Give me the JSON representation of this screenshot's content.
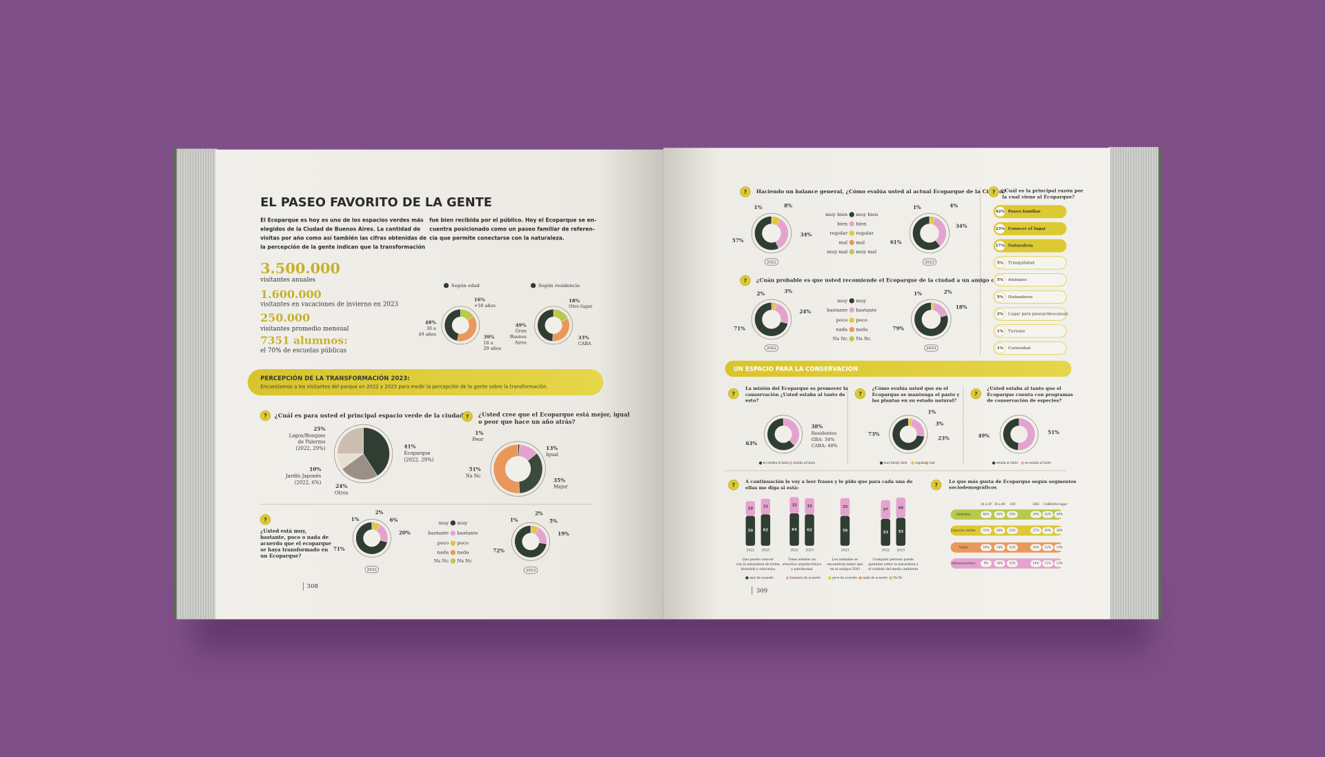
{
  "question_mark": "?",
  "left_page": {
    "title": "EL PASEO FAVORITO DE LA GENTE",
    "intro": [
      "El Ecoparque es hoy es uno de los espacios verdes más",
      "elegidos de la Ciudad de Buenos Aires. La cantidad de",
      "visitas por año como así también las cifras obtenidas de",
      "la percepción de la gente indican que la transformación"
    ],
    "intro_continued": [
      "fue bien recibida por el público. Hoy el Ecoparque se en-",
      "cuentra posicionado como un paseo familiar de referen-",
      "cia que permite conectarse con la naturaleza."
    ],
    "stats": [
      {
        "figure": "3.500.000",
        "caption": "visitantes anuales"
      },
      {
        "figure": "1.600.000",
        "caption": "visitantes en vacaciones de invierno en 2023"
      },
      {
        "figure": "250.000",
        "caption": "visitantes promedio mensual"
      },
      {
        "figure": "7351 alumnos:",
        "caption": "el 70% de escuelas públicas"
      }
    ],
    "age_donut": {
      "legend": "Según edad",
      "values": [
        16,
        39,
        48
      ],
      "value_labels": [
        "16%",
        "39%",
        "48%"
      ],
      "labels": [
        [
          "+50 años"
        ],
        [
          "18 a",
          "29 años"
        ],
        [
          "30 a",
          "49 años"
        ]
      ]
    },
    "residence_donut": {
      "legend": "Según residencia",
      "values": [
        18,
        33,
        49
      ],
      "value_labels": [
        "18%",
        "33%",
        "49%"
      ],
      "labels": [
        [
          "Otro lugar"
        ],
        [
          "CABA"
        ],
        [
          "Gran",
          "Buenos",
          "Aires"
        ]
      ]
    },
    "banner": {
      "title": "PERCEPCIÓN DE LA TRANSFORMACIÓN 2023:",
      "text": "Encuestamos a los visitantes del parque en 2022 y 2023 para medir la percepción de la gente sobre la transformación."
    },
    "green_space": {
      "question": "¿Cuál es para usted el principal espacio verde de la ciudad?",
      "values": [
        41,
        24,
        10,
        25
      ],
      "value_labels": [
        "41%",
        "24%",
        "10%",
        "25%"
      ],
      "labels": [
        [
          "Ecoparque",
          "(2022, 29%)"
        ],
        [
          "Otros"
        ],
        [
          "Jardín Japonés",
          "(2022, 6%)"
        ],
        [
          "Lagos/Bosques",
          "de Palermo",
          "(2022, 29%)"
        ]
      ]
    },
    "better_worse": {
      "question": [
        "¿Usted cree que el Ecoparque está mejor, igual",
        "o peor que hace un año atrás?"
      ],
      "values": [
        1,
        13,
        35,
        51
      ],
      "value_labels": [
        "1%",
        "13%",
        "35%",
        "51%"
      ],
      "labels": [
        [
          "Peor"
        ],
        [
          "Igual"
        ],
        [
          "Mejor"
        ],
        [
          "Ns Nc"
        ]
      ]
    },
    "transformed": {
      "question": [
        "¿Usted está muy,",
        "bastante, poco o nada de",
        "acuerdo que el ecoparque",
        "se haya transformado en",
        "un Ecoparque?"
      ],
      "legend": [
        "muy",
        "bastante",
        "poco",
        "nada",
        "Ns Nc"
      ],
      "charts": [
        {
          "year": "2022",
          "values": [
            71,
            20,
            6,
            2,
            1
          ],
          "value_labels": [
            "71%",
            "20%",
            "6%",
            "2%",
            "1%"
          ]
        },
        {
          "year": "2023",
          "values": [
            72,
            19,
            5,
            2,
            1
          ],
          "value_labels": [
            "72%",
            "19%",
            "5%",
            "2%",
            "1%"
          ]
        }
      ]
    },
    "page_number": "308"
  },
  "right_page": {
    "overall": {
      "question": "Haciendo un balance general, ¿Cómo evalúa usted al actual Ecoparque de la Ciudad?",
      "legend": [
        "muy bien",
        "bien",
        "regular",
        "mal",
        "muy mal"
      ],
      "charts": [
        {
          "year": "2022",
          "values": [
            57,
            34,
            8,
            1
          ],
          "value_labels": [
            "57%",
            "34%",
            "8%",
            "1%"
          ]
        },
        {
          "year": "2023",
          "values": [
            61,
            34,
            4,
            1
          ],
          "value_labels": [
            "61%",
            "34%",
            "4%",
            "1%"
          ]
        }
      ]
    },
    "recommend": {
      "question": "¿Cuán probable es que usted recomiende el Ecoparque de la ciudad a un amigo o familiar?",
      "legend": [
        "muy",
        "bastante",
        "poco",
        "nada",
        "Ns Nc"
      ],
      "charts": [
        {
          "year": "2022",
          "values": [
            71,
            24,
            3,
            2
          ],
          "value_labels": [
            "71%",
            "24%",
            "3%",
            "2%"
          ]
        },
        {
          "year": "2023",
          "values": [
            79,
            18,
            2,
            1
          ],
          "value_labels": [
            "79%",
            "18%",
            "2%",
            "1%"
          ]
        }
      ]
    },
    "reasons": {
      "question": [
        "¿Cuál es la principal razón por",
        "la cual viene al Ecoparque?"
      ],
      "items": [
        {
          "share": "42%",
          "reason": "Paseo familiar"
        },
        {
          "share": "23%",
          "reason": "Conocer el lugar"
        },
        {
          "share": "17%",
          "reason": "Naturaleza"
        },
        {
          "share": "5%",
          "reason": "Tranquilidad"
        },
        {
          "share": "5%",
          "reason": "Animales"
        },
        {
          "share": "5%",
          "reason": "Distenderse"
        },
        {
          "share": "2%",
          "reason": "Lugar para pasear/descansar"
        },
        {
          "share": "1%",
          "reason": "Turismo"
        },
        {
          "share": "1%",
          "reason": "Curiosidad"
        }
      ]
    },
    "conservation": {
      "title": "UN ESPACIO PARA LA CONSERVACIÓN",
      "charts": [
        {
          "question": [
            "La misión del Ecoparque es promover la",
            "conservación ¿Usted estaba al tanto de",
            "esto?"
          ],
          "values": [
            63,
            38
          ],
          "value_labels": [
            "63%",
            "38%"
          ],
          "notes": [
            "Residentes",
            "GBA: 34%",
            "CABA: 48%"
          ],
          "legend": [
            "no estaba al tanto",
            "estaba al tanto"
          ]
        },
        {
          "question": [
            "¿Cómo evalúa usted que en el",
            "Ecoparque se mantenga el pasto y",
            "las plantas en su estado natural?"
          ],
          "values": [
            73,
            23,
            3,
            1
          ],
          "value_labels": [
            "73%",
            "23%",
            "3%",
            "1%"
          ],
          "legend": [
            "muy bien",
            "bien",
            "regular",
            "mal"
          ]
        },
        {
          "question": [
            "¿Usted estaba al tanto que el",
            "Ecoparque cuenta con programas",
            "de conservación de especies?"
          ],
          "values": [
            49,
            51
          ],
          "value_labels": [
            "49%",
            "51%"
          ],
          "legend": [
            "estaba al tanto",
            "no estaba al tanto"
          ]
        }
      ]
    },
    "agreement": {
      "question": [
        "A continuación le voy a leer frases y le pido que para cada una de",
        "ellas me diga si está:"
      ],
      "groups": [
        {
          "caption": [
            "Que puede conocer",
            "con la naturaleza de forma",
            "divertida y educativa"
          ],
          "bars": [
            {
              "year": "2022",
              "values": [
                59,
                29
              ]
            },
            {
              "year": "2023",
              "values": [
                62,
                31
              ]
            }
          ]
        },
        {
          "caption": [
            "Tiene además un",
            "atractivo arquitectónico",
            "y patrimonial"
          ],
          "bars": [
            {
              "year": "2022",
              "values": [
                64,
                32
              ]
            },
            {
              "year": "2023",
              "values": [
                62,
                32
              ]
            }
          ]
        },
        {
          "caption": [
            "Los animales se",
            "encuentran mejor que",
            "en el antiguo ZOO"
          ],
          "bars": [
            {
              "year": "2023",
              "values": [
                59,
                35
              ]
            }
          ]
        },
        {
          "caption": [
            "Cualquier persona puede",
            "aprender sobre la naturaleza y",
            "el cuidado del medio ambiente"
          ],
          "bars": [
            {
              "year": "2022",
              "values": [
                53,
                37
              ]
            },
            {
              "year": "2023",
              "values": [
                55,
                40
              ]
            }
          ]
        }
      ],
      "legend": [
        "muy de acuerdo",
        "bastante de acuerdo",
        "poco de acuerdo",
        "nada de acuerdo",
        "Ns Nc"
      ]
    },
    "segments": {
      "question": [
        "Lo que más gusta de Ecoparque según segmentos",
        "sociodemográficos"
      ],
      "columns": [
        "18 a 29",
        "30 a 49",
        "+50",
        "GBA",
        "CABA",
        "Otro lugar"
      ],
      "rows": [
        {
          "name": "Animales",
          "cells": [
            "46%",
            "40%",
            "35%",
            "38%",
            "42%",
            "40%"
          ]
        },
        {
          "name": "Espacios verdes",
          "cells": [
            "22%",
            "28%",
            "31%",
            "27%",
            "30%",
            "26%"
          ]
        },
        {
          "name": "Visita",
          "cells": [
            "18%",
            "14%",
            "12%",
            "16%",
            "12%",
            "15%"
          ]
        },
        {
          "name": "Infraestructura",
          "cells": [
            "9%",
            "16%",
            "12%",
            "14%",
            "11%",
            "13%"
          ]
        }
      ]
    },
    "page_number": "309"
  }
}
